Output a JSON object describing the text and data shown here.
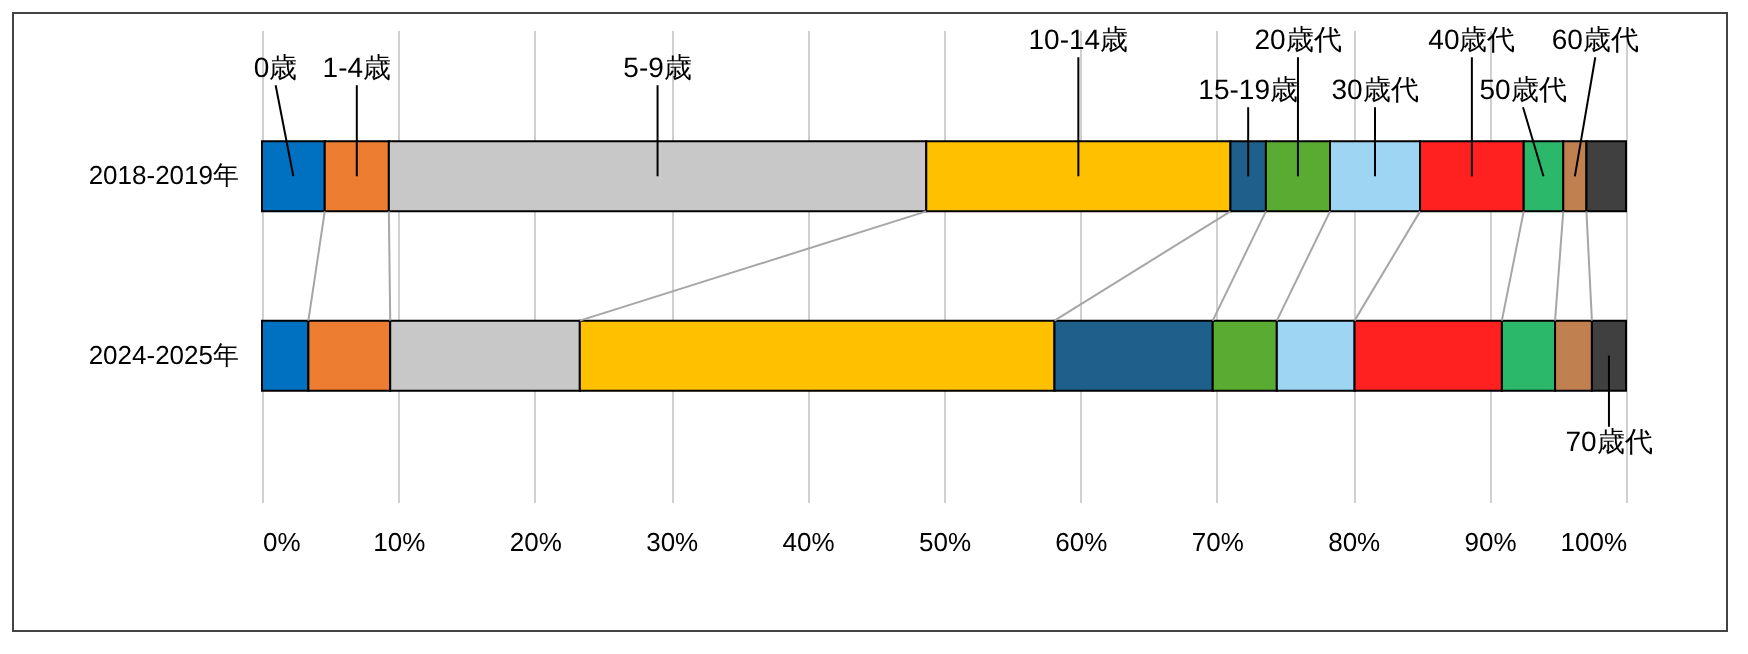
{
  "chart_data": {
    "type": "bar",
    "orientation": "horizontal",
    "stacked": true,
    "categories": [
      "2018-2019年",
      "2024-2025年"
    ],
    "series": [
      {
        "name": "0歳",
        "color": "#0070c0",
        "values": [
          4.6,
          3.4
        ]
      },
      {
        "name": "1-4歳",
        "color": "#ed7d31",
        "values": [
          4.7,
          6.0
        ]
      },
      {
        "name": "5-9歳",
        "color": "#c8c8c8",
        "values": [
          39.4,
          13.9
        ]
      },
      {
        "name": "10-14歳",
        "color": "#ffc000",
        "values": [
          22.3,
          34.8
        ]
      },
      {
        "name": "15-19歳",
        "color": "#1f5f8b",
        "values": [
          2.6,
          11.6
        ]
      },
      {
        "name": "20歳代",
        "color": "#5aab32",
        "values": [
          4.7,
          4.7
        ]
      },
      {
        "name": "30歳代",
        "color": "#9dd5f2",
        "values": [
          6.6,
          5.7
        ]
      },
      {
        "name": "40歳代",
        "color": "#ff2020",
        "values": [
          7.6,
          10.8
        ]
      },
      {
        "name": "50歳代",
        "color": "#2cb86a",
        "values": [
          2.9,
          3.9
        ]
      },
      {
        "name": "60歳代",
        "color": "#c0804f",
        "values": [
          1.7,
          2.7
        ]
      },
      {
        "name": "70歳代",
        "color": "#404040",
        "values": [
          2.9,
          2.5
        ]
      }
    ],
    "xlim": [
      0,
      100
    ],
    "xticks": [
      {
        "value": 0,
        "label": "0%"
      },
      {
        "value": 10,
        "label": "10%"
      },
      {
        "value": 20,
        "label": "20%"
      },
      {
        "value": 30,
        "label": "30%"
      },
      {
        "value": 40,
        "label": "40%"
      },
      {
        "value": 50,
        "label": "50%"
      },
      {
        "value": 60,
        "label": "60%"
      },
      {
        "value": 70,
        "label": "70%"
      },
      {
        "value": 80,
        "label": "80%"
      },
      {
        "value": 90,
        "label": "90%"
      },
      {
        "value": 100,
        "label": "100%"
      }
    ],
    "grid": "x"
  }
}
